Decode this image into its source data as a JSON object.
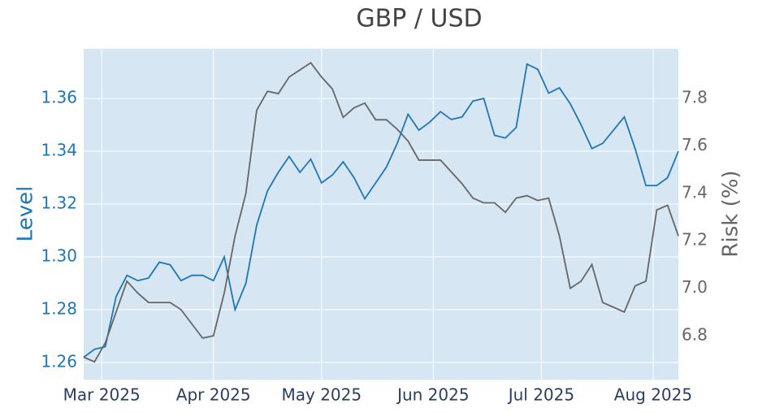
{
  "chart_data": {
    "type": "line",
    "title": "GBP / USD",
    "ylabel": "Level",
    "y2label": "Risk (%)",
    "x": [
      "2025-02-24",
      "2025-02-27",
      "2025-03-02",
      "2025-03-05",
      "2025-03-08",
      "2025-03-11",
      "2025-03-14",
      "2025-03-17",
      "2025-03-20",
      "2025-03-23",
      "2025-03-26",
      "2025-03-29",
      "2025-04-01",
      "2025-04-04",
      "2025-04-07",
      "2025-04-10",
      "2025-04-13",
      "2025-04-16",
      "2025-04-19",
      "2025-04-22",
      "2025-04-25",
      "2025-04-28",
      "2025-05-01",
      "2025-05-04",
      "2025-05-07",
      "2025-05-10",
      "2025-05-13",
      "2025-05-16",
      "2025-05-19",
      "2025-05-22",
      "2025-05-25",
      "2025-05-28",
      "2025-05-31",
      "2025-06-03",
      "2025-06-06",
      "2025-06-09",
      "2025-06-12",
      "2025-06-15",
      "2025-06-18",
      "2025-06-21",
      "2025-06-24",
      "2025-06-27",
      "2025-06-30",
      "2025-07-03",
      "2025-07-06",
      "2025-07-09",
      "2025-07-12",
      "2025-07-15",
      "2025-07-18",
      "2025-07-21",
      "2025-07-24",
      "2025-07-27",
      "2025-07-30",
      "2025-08-02",
      "2025-08-05",
      "2025-08-08"
    ],
    "series": [
      {
        "color": "#1f77b4",
        "values": [
          1.262,
          1.265,
          1.266,
          1.285,
          1.293,
          1.291,
          1.292,
          1.298,
          1.297,
          1.291,
          1.293,
          1.293,
          1.291,
          1.3,
          1.28,
          1.29,
          1.312,
          1.325,
          1.332,
          1.338,
          1.332,
          1.337,
          1.328,
          1.331,
          1.336,
          1.33,
          1.322,
          1.328,
          1.334,
          1.343,
          1.354,
          1.348,
          1.351,
          1.355,
          1.352,
          1.353,
          1.359,
          1.36,
          1.346,
          1.345,
          1.349,
          1.373,
          1.371,
          1.362,
          1.364,
          1.358,
          1.35,
          1.341,
          1.343,
          1.348,
          1.353,
          1.341,
          1.327,
          1.327,
          1.33,
          1.34
        ]
      },
      {
        "color": "#666666",
        "axis": "y2",
        "values": [
          6.71,
          6.69,
          6.77,
          6.9,
          7.03,
          6.98,
          6.94,
          6.94,
          6.94,
          6.91,
          6.85,
          6.79,
          6.8,
          6.98,
          7.22,
          7.4,
          7.75,
          7.83,
          7.82,
          7.89,
          7.92,
          7.95,
          7.89,
          7.84,
          7.72,
          7.76,
          7.78,
          7.71,
          7.71,
          7.67,
          7.62,
          7.54,
          7.54,
          7.54,
          7.49,
          7.44,
          7.38,
          7.36,
          7.36,
          7.32,
          7.38,
          7.39,
          7.37,
          7.38,
          7.22,
          7.0,
          7.03,
          7.1,
          6.94,
          6.92,
          6.9,
          7.01,
          7.03,
          7.33,
          7.35,
          7.22
        ]
      }
    ],
    "xlim": [
      "2025-02-24",
      "2025-08-08"
    ],
    "xticks": [
      {
        "value": "2025-03-01",
        "label": "Mar 2025"
      },
      {
        "value": "2025-04-01",
        "label": "Apr 2025"
      },
      {
        "value": "2025-05-01",
        "label": "May 2025"
      },
      {
        "value": "2025-06-01",
        "label": "Jun 2025"
      },
      {
        "value": "2025-07-01",
        "label": "Jul 2025"
      },
      {
        "value": "2025-08-01",
        "label": "Aug 2025"
      }
    ],
    "ylim": [
      1.2535,
      1.3788
    ],
    "yticks": [
      1.26,
      1.28,
      {
        "value": 1.3,
        "label": "1.30"
      },
      1.32,
      1.34,
      1.36
    ],
    "y2lim": [
      6.615,
      8.009
    ],
    "y2ticks": [
      6.8,
      {
        "value": 7,
        "label": "7.0"
      },
      7.2,
      7.4,
      7.6,
      7.8
    ],
    "grid": true
  }
}
